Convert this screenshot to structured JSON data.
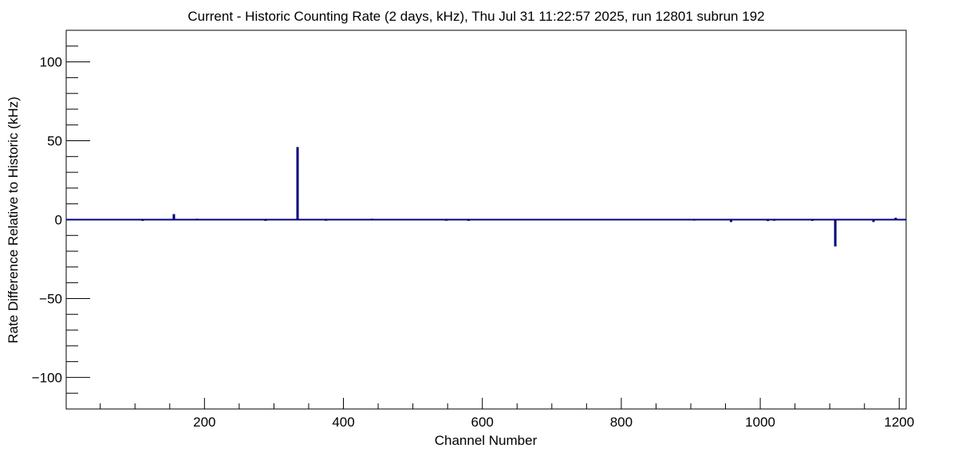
{
  "chart_data": {
    "type": "bar",
    "title": "Current - Historic Counting Rate (2 days, kHz), Thu Jul 31 11:22:57 2025, run 12801 subrun 192",
    "xlabel": "Channel Number",
    "ylabel": "Rate Difference Relative to Historic (kHz)",
    "xlim": [
      1,
      1210
    ],
    "ylim": [
      -120,
      120
    ],
    "x_ticks": [
      200,
      400,
      600,
      800,
      1000,
      1200
    ],
    "x_tick_labels": [
      "200",
      "400",
      "600",
      "800",
      "1000",
      "1200"
    ],
    "y_ticks": [
      -100,
      -50,
      0,
      50,
      100
    ],
    "y_tick_labels": [
      "−100",
      "−50",
      "0",
      "50",
      "100"
    ],
    "grid": false,
    "legend": "none",
    "series": [
      {
        "x": [
          111,
          156,
          189,
          288,
          334,
          375,
          441,
          548,
          580,
          905,
          958,
          1011,
          1020,
          1075,
          1108,
          1163,
          1195
        ],
        "values": [
          -0.8,
          3.5,
          0.6,
          -0.8,
          46,
          -0.7,
          0.6,
          -0.7,
          -0.8,
          -0.6,
          -1.5,
          -0.9,
          -0.7,
          -0.8,
          -17,
          -1.5,
          1.2
        ]
      }
    ],
    "baseline": 0,
    "colors": {
      "series": "#000080",
      "frame": "#000000"
    }
  }
}
